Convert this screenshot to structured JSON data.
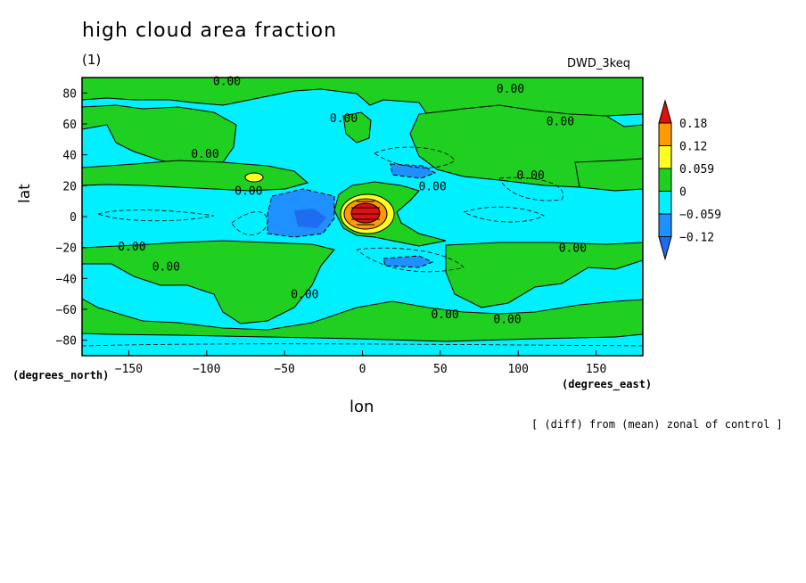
{
  "title": "high cloud area fraction",
  "subtitle": "(1)",
  "model_label": "DWD_3keq",
  "note": "[ (diff) from (mean) zonal of control ]",
  "chart_data": {
    "type": "contour_map",
    "variable": "high cloud area fraction",
    "xlabel": "lon",
    "ylabel": "lat",
    "x_unit_label": "(degrees_east)",
    "y_unit_label": "(degrees_north)",
    "xlim": [
      -180,
      180
    ],
    "ylim": [
      -90,
      90
    ],
    "x_ticks": [
      -150,
      -100,
      -50,
      0,
      50,
      100,
      150
    ],
    "y_ticks": [
      -80,
      -60,
      -40,
      -20,
      0,
      20,
      40,
      60,
      80
    ],
    "colorbar": {
      "levels": [
        "0.18",
        "0.12",
        "0.059",
        "0",
        "−0.059",
        "−0.12"
      ],
      "colors": [
        "#e01010",
        "#ff9a00",
        "#ffff20",
        "#20d020",
        "#00f0ff",
        "#1e90ff",
        "#1e6cf0"
      ]
    },
    "contour_labels": [
      {
        "text": "0.00",
        "lon": -87,
        "lat": 88
      },
      {
        "text": "0.00",
        "lon": 95,
        "lat": 83
      },
      {
        "text": "0.00",
        "lon": -12,
        "lat": 64
      },
      {
        "text": "0.00",
        "lon": 127,
        "lat": 62
      },
      {
        "text": "0.00",
        "lon": -101,
        "lat": 41
      },
      {
        "text": "0.00",
        "lon": 108,
        "lat": 27
      },
      {
        "text": "0.00",
        "lon": -73,
        "lat": 17
      },
      {
        "text": "0.00",
        "lon": 45,
        "lat": 20
      },
      {
        "text": "0.00",
        "lon": -148,
        "lat": -19
      },
      {
        "text": "0.00",
        "lon": -126,
        "lat": -32
      },
      {
        "text": "0.00",
        "lon": -37,
        "lat": -50
      },
      {
        "text": "0.00",
        "lon": 53,
        "lat": -63
      },
      {
        "text": "0.00",
        "lon": 93,
        "lat": -66
      },
      {
        "text": "0.00",
        "lon": 135,
        "lat": -20
      }
    ]
  }
}
